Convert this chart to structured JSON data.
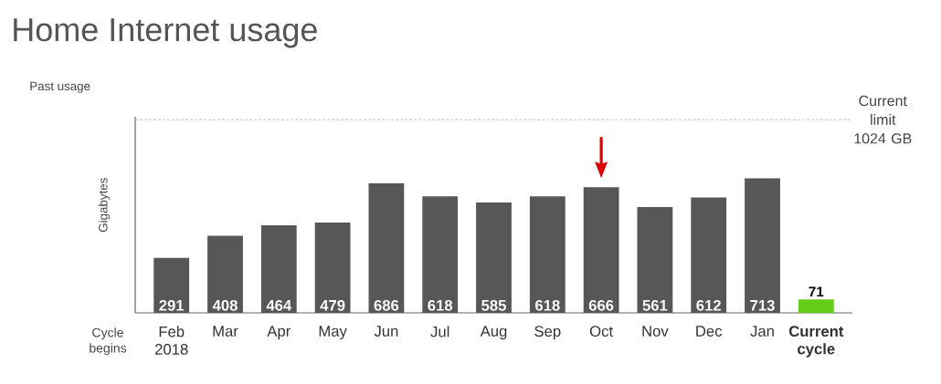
{
  "chart_data": {
    "type": "bar",
    "title": "Home Internet usage",
    "subtitle": "Past usage",
    "ylabel": "Gigabytes",
    "categories": [
      "Feb 2018",
      "Mar",
      "Apr",
      "May",
      "Jun",
      "Jul",
      "Aug",
      "Sep",
      "Oct",
      "Nov",
      "Dec",
      "Jan",
      "Current cycle"
    ],
    "values": [
      291,
      408,
      464,
      479,
      686,
      618,
      585,
      618,
      666,
      561,
      612,
      713,
      71
    ],
    "colors": [
      "#575757",
      "#575757",
      "#575757",
      "#575757",
      "#575757",
      "#575757",
      "#575757",
      "#575757",
      "#575757",
      "#575757",
      "#575757",
      "#575757",
      "#66cc1a"
    ],
    "ylim": [
      0,
      1024
    ],
    "data_labels": true,
    "ref_lines": [
      {
        "axis": "y",
        "value": 1024,
        "label": "Current limit 1024 GB",
        "color": "#c4c4c4",
        "line_style": "dashed"
      }
    ],
    "annotations": [
      "Cycle begins"
    ]
  }
}
